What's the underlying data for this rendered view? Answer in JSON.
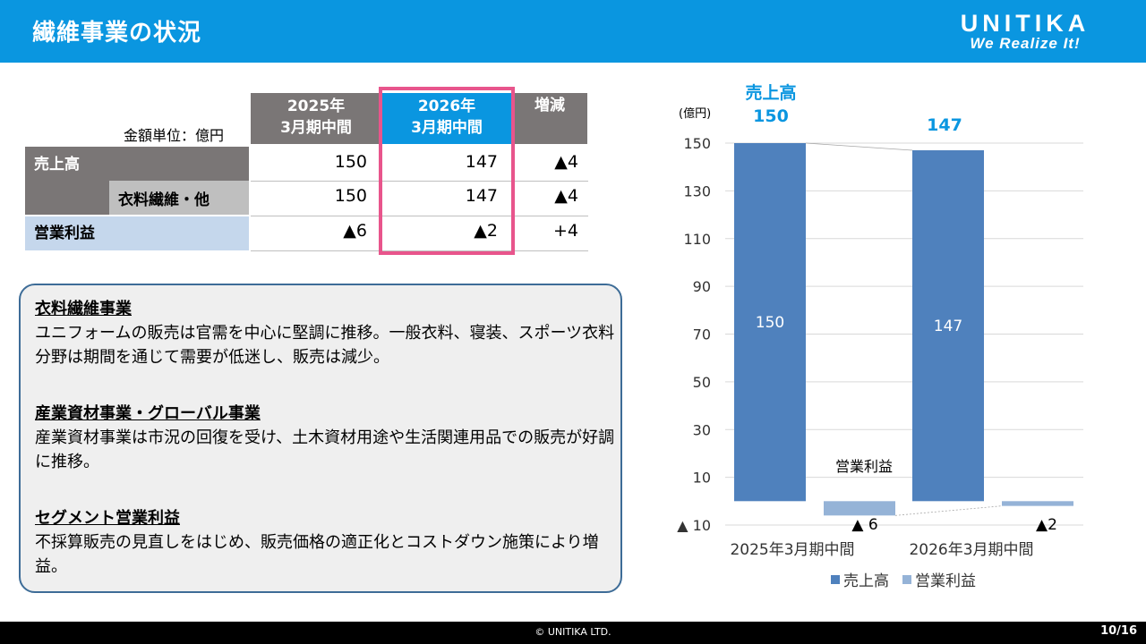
{
  "header": {
    "title": "繊維事業の状況",
    "logo_brand": "UNITIKA",
    "logo_tagline": "We Realize It!"
  },
  "table": {
    "unit_label": "金額単位：億円",
    "col_2025_line1": "2025年",
    "col_2025_line2": "3月期中間",
    "col_2026_line1": "2026年",
    "col_2026_line2": "3月期中間",
    "col_diff": "増減",
    "rows": [
      {
        "label": "売上高",
        "v2025": "150",
        "v2026": "147",
        "diff": "▲4"
      },
      {
        "label": "衣料繊維・他",
        "v2025": "150",
        "v2026": "147",
        "diff": "▲4"
      },
      {
        "label": "営業利益",
        "v2025": "▲6",
        "v2026": "▲2",
        "diff": "+4"
      }
    ]
  },
  "textbox": {
    "sections": [
      {
        "heading": "衣料繊維事業",
        "body": "ユニフォームの販売は官需を中心に堅調に推移。一般衣料、寝装、スポーツ衣料分野は期間を通じて需要が低迷し、販売は減少。"
      },
      {
        "heading": "産業資材事業・グローバル事業",
        "body": "産業資材事業は市況の回復を受け、土木資材用途や生活関連用品での販売が好調に推移。"
      },
      {
        "heading": "セグメント営業利益",
        "body": "不採算販売の見直しをはじめ、販売価格の適正化とコストダウン施策により増益。"
      }
    ]
  },
  "chart_data": {
    "type": "bar",
    "unit_label": "(億円)",
    "categories": [
      "2025年3月期中間",
      "2026年3月期中間"
    ],
    "series": [
      {
        "name": "売上高",
        "values": [
          150,
          147
        ],
        "color": "#4f81bd"
      },
      {
        "name": "営業利益",
        "values": [
          -6,
          -2
        ],
        "color": "#95b3d7"
      }
    ],
    "data_labels": {
      "sales_inside": [
        "150",
        "147"
      ],
      "op_profit": [
        "▲ 6",
        "▲2"
      ]
    },
    "top_annotation_title": "売上高",
    "top_annotation_values": [
      "150",
      "147"
    ],
    "op_profit_annotation": "営業利益",
    "y_ticks": [
      150,
      130,
      110,
      90,
      70,
      50,
      30,
      10,
      -10
    ],
    "y_tick_labels": [
      "150",
      "130",
      "110",
      "90",
      "70",
      "50",
      "30",
      "10",
      "▲ 10"
    ],
    "ylim": [
      -10,
      150
    ],
    "legend_position": "bottom",
    "grid": true
  },
  "footer": {
    "copyright": "© UNITIKA LTD.",
    "page": "10/16"
  }
}
